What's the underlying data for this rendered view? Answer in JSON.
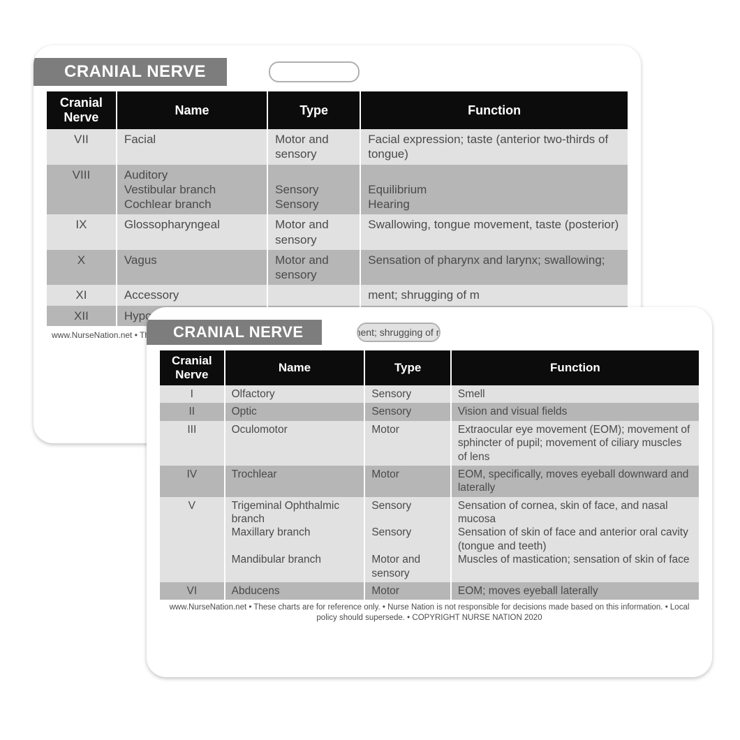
{
  "colors": {
    "title_bg": "#7d7d7d",
    "header_bg": "#0c0c0c",
    "text": "#4a4a4a",
    "row_light": "#e1e1e1",
    "row_dark": "#b6b6b6",
    "page_bg": "#ffffff"
  },
  "card_back": {
    "title": "CRANIAL NERVE",
    "columns": [
      "Cranial Nerve",
      "Name",
      "Type",
      "Function"
    ],
    "col_widths_pct": [
      12,
      26,
      16,
      46
    ],
    "rows": [
      {
        "shade": "light",
        "cells": [
          "VII",
          "Facial",
          "Motor and sensory",
          "Facial expression; taste (anterior two-thirds of tongue)"
        ]
      },
      {
        "shade": "dark",
        "cells": [
          "VIII",
          "Auditory\nVestibular branch\nCochlear branch",
          "\nSensory\nSensory",
          "\nEquilibrium\nHearing"
        ]
      },
      {
        "shade": "light",
        "cells": [
          "IX",
          "Glossopharyngeal",
          "Motor and sensory",
          "Swallowing, tongue movement, taste (posterior)"
        ]
      },
      {
        "shade": "dark",
        "cells": [
          "X",
          "Vagus",
          "Motor and sensory",
          "Sensation of pharynx and larynx; swallowing;"
        ]
      },
      {
        "shade": "light",
        "cells": [
          "XI",
          "Accessory",
          "",
          "ment; shrugging of m"
        ]
      },
      {
        "shade": "dark",
        "cells": [
          "XII",
          "Hypogloss",
          "",
          ""
        ]
      }
    ],
    "footer": "www.NurseNation.net • The"
  },
  "card_front": {
    "title": "CRANIAL NERVE",
    "hole_text": "ment; shrugging of m",
    "columns": [
      "Cranial Nerve",
      "Name",
      "Type",
      "Function"
    ],
    "col_widths_pct": [
      12,
      26,
      16,
      46
    ],
    "rows": [
      {
        "shade": "light",
        "cells": [
          "I",
          "Olfactory",
          "Sensory",
          "Smell"
        ]
      },
      {
        "shade": "dark",
        "cells": [
          "II",
          "Optic",
          "Sensory",
          "Vision and visual fields"
        ]
      },
      {
        "shade": "light",
        "cells": [
          "III",
          "Oculomotor",
          "Motor",
          "Extraocular eye movement (EOM); movement of sphincter of pupil; movement of ciliary muscles of lens"
        ]
      },
      {
        "shade": "dark",
        "cells": [
          "IV",
          "Trochlear",
          "Motor",
          "EOM, specifically, moves eyeball downward and laterally"
        ]
      },
      {
        "shade": "light",
        "cells": [
          "V",
          "Trigeminal Ophthalmic branch\nMaxillary branch\n\nMandibular branch",
          "Sensory\n\nSensory\n\nMotor and sensory",
          "Sensation of cornea, skin of face, and nasal mucosa\nSensation of skin of face and anterior oral cavity (tongue and teeth)\nMuscles of mastication; sensation of skin of face"
        ]
      },
      {
        "shade": "dark",
        "cells": [
          "VI",
          "Abducens",
          "Motor",
          "EOM; moves eyeball laterally"
        ]
      }
    ],
    "footer": "www.NurseNation.net • These charts are for reference only. • Nurse Nation is not responsible for decisions made based on this information. • Local policy should supersede. • COPYRIGHT NURSE NATION 2020"
  }
}
